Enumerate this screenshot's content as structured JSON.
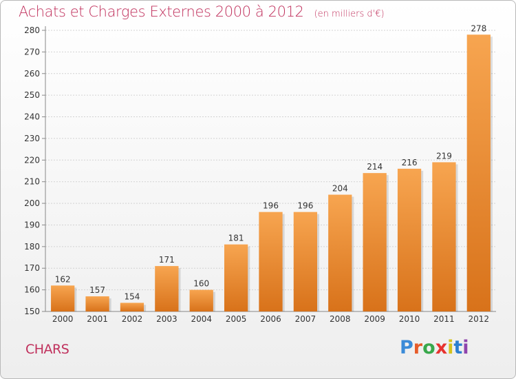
{
  "header": {
    "title": "Achats et Charges Externes 2000 à 2012",
    "unit": "(en milliers d'€)"
  },
  "commune": "CHARS",
  "logo": {
    "text": "Proxiti",
    "letter_colors": [
      "#3b8bd8",
      "#e65c2a",
      "#39a84b",
      "#e7332f",
      "#d4c21d",
      "#2c7fcf",
      "#8e44ad"
    ]
  },
  "colors": {
    "bar_light": "#f7a550",
    "bar_dark": "#d8721a",
    "title": "#c0305c"
  },
  "chart_data": {
    "type": "bar",
    "categories": [
      "2000",
      "2001",
      "2002",
      "2003",
      "2004",
      "2005",
      "2006",
      "2007",
      "2008",
      "2009",
      "2010",
      "2011",
      "2012"
    ],
    "values": [
      162,
      157,
      154,
      171,
      160,
      181,
      196,
      196,
      204,
      214,
      216,
      219,
      278
    ],
    "ylim": [
      150,
      280
    ],
    "yticks": [
      150,
      160,
      170,
      180,
      190,
      200,
      210,
      220,
      230,
      240,
      250,
      260,
      270,
      280
    ],
    "grid": true,
    "xlabel": "",
    "ylabel": ""
  }
}
